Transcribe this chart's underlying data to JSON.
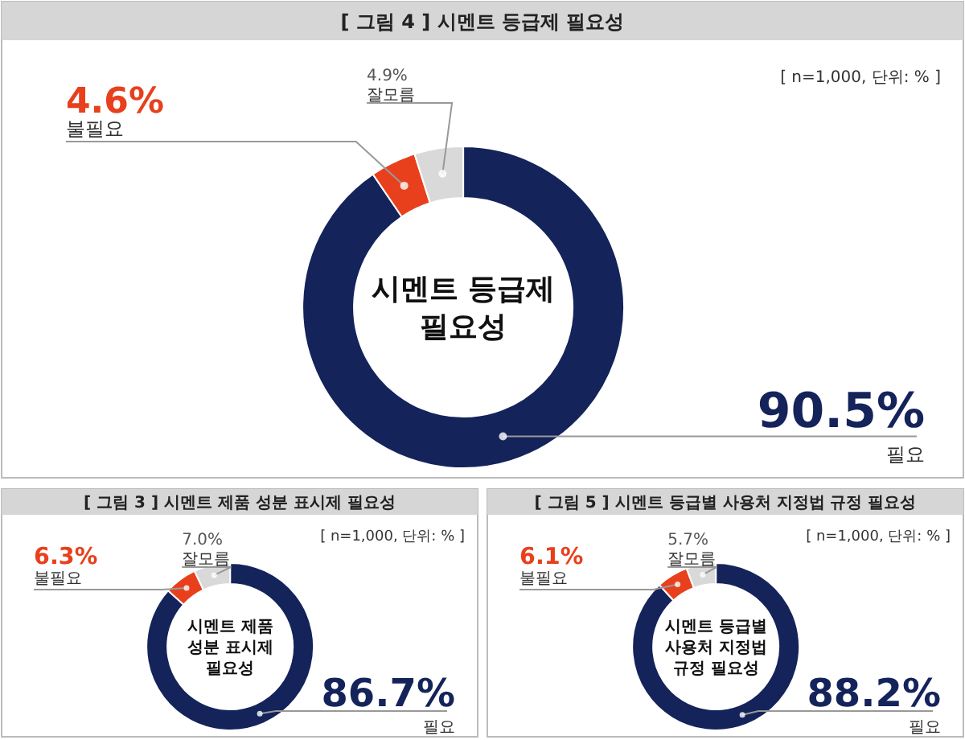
{
  "chart_data": [
    {
      "type": "donut",
      "title": "[ 그림 4 ] 시멘트 등급제 필요성",
      "subtitle": "[ n=1,000, 단위: % ]",
      "categories": [
        "필요",
        "불필요",
        "잘모름"
      ],
      "values": [
        90.5,
        4.6,
        4.9
      ],
      "value_labels": [
        "90.5%",
        "4.6%",
        "4.9%"
      ],
      "colors": [
        "#14235a",
        "#e8401c",
        "#d9d9d9"
      ],
      "annotations": [
        "시멘트 등급제",
        "필요성"
      ]
    },
    {
      "type": "donut",
      "title": "[ 그림 3 ] 시멘트 제품 성분 표시제 필요성",
      "subtitle": "[ n=1,000, 단위: % ]",
      "categories": [
        "필요",
        "불필요",
        "잘모름"
      ],
      "values": [
        86.7,
        6.3,
        7.0
      ],
      "value_labels": [
        "86.7%",
        "6.3%",
        "7.0%"
      ],
      "colors": [
        "#14235a",
        "#e8401c",
        "#d9d9d9"
      ],
      "annotations": [
        "시멘트 제품",
        "성분 표시제",
        "필요성"
      ]
    },
    {
      "type": "donut",
      "title": "[ 그림 5 ] 시멘트 등급별 사용처 지정법 규정 필요성",
      "subtitle": "[ n=1,000, 단위: % ]",
      "categories": [
        "필요",
        "불필요",
        "잘모름"
      ],
      "values": [
        88.2,
        6.1,
        5.7
      ],
      "value_labels": [
        "88.2%",
        "6.1%",
        "5.7%"
      ],
      "colors": [
        "#14235a",
        "#e8401c",
        "#d9d9d9"
      ],
      "annotations": [
        "시멘트 등급별",
        "사용처 지정법",
        "규정 필요성"
      ]
    }
  ]
}
